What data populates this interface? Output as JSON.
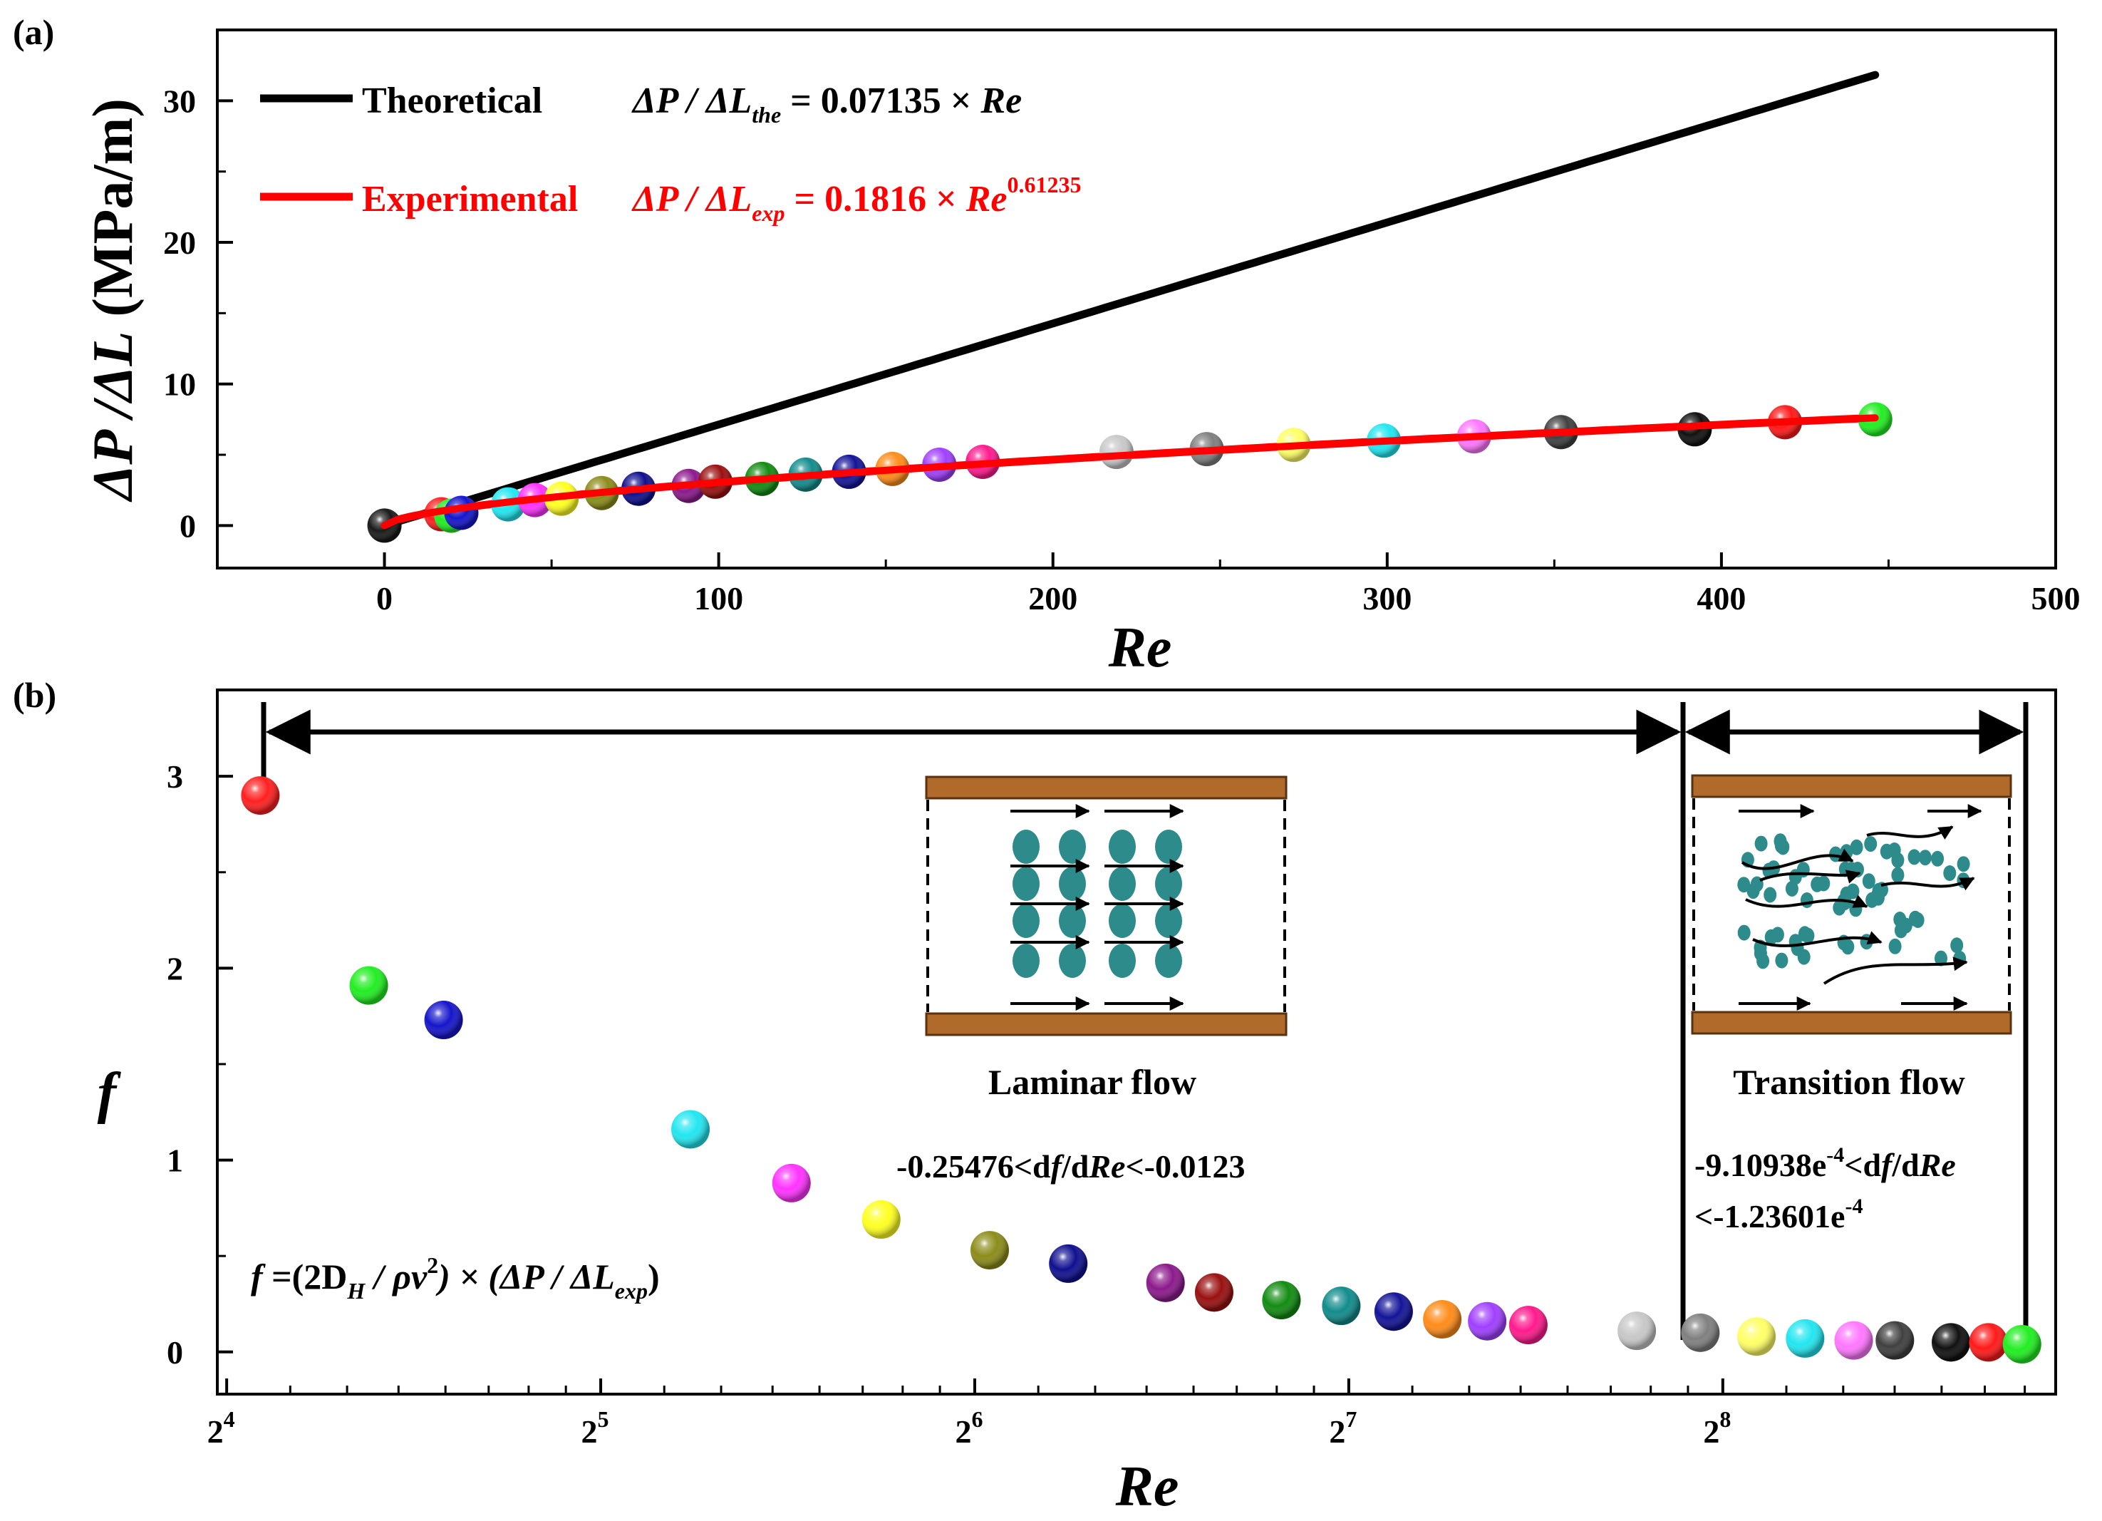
{
  "chart_data": [
    {
      "panel": "(a)",
      "type": "scatter",
      "xlabel": "Re",
      "ylabel": "ΔP / ΔL (MPa/m)",
      "xlim": [
        -50,
        500
      ],
      "ylim": [
        -3,
        35
      ],
      "xticks": [
        "0",
        "100",
        "200",
        "300",
        "400",
        "500"
      ],
      "yticks": [
        "0",
        "10",
        "20",
        "30"
      ],
      "legend": {
        "position": "top-left",
        "entries": [
          {
            "name": "Theoretical",
            "color": "#000000",
            "eq_lhs": "ΔP / ΔL",
            "eq_sub": "the",
            "eq_rhs": " = 0.07135 × ",
            "eq_var": "Re",
            "eq_sup": ""
          },
          {
            "name": "Experimental",
            "color": "#ff0000",
            "eq_lhs": "ΔP / ΔL",
            "eq_sub": "exp",
            "eq_rhs": " = 0.1816 × ",
            "eq_var": "Re",
            "eq_sup": "0.61235"
          }
        ]
      },
      "lines": [
        {
          "name": "Theoretical",
          "color": "#000000",
          "coef": 0.07135,
          "exponent": 1,
          "x_range": [
            0,
            446
          ]
        },
        {
          "name": "Experimental",
          "color": "#ff0000",
          "coef": 0.1816,
          "exponent": 0.61235,
          "x_range": [
            0,
            446
          ]
        }
      ],
      "points": [
        {
          "x": 0,
          "y": 0.0,
          "color": "#1a1a1a"
        },
        {
          "x": 17,
          "y": 0.8,
          "color": "#ff2020"
        },
        {
          "x": 20,
          "y": 0.7,
          "color": "#22ee22"
        },
        {
          "x": 23,
          "y": 0.9,
          "color": "#1515cc"
        },
        {
          "x": 37,
          "y": 1.5,
          "color": "#22e6f0"
        },
        {
          "x": 45,
          "y": 1.8,
          "color": "#ff33ff"
        },
        {
          "x": 53,
          "y": 1.9,
          "color": "#ffff22"
        },
        {
          "x": 65,
          "y": 2.3,
          "color": "#8c8c1a"
        },
        {
          "x": 76,
          "y": 2.6,
          "color": "#101090"
        },
        {
          "x": 91,
          "y": 2.8,
          "color": "#8c1a8c"
        },
        {
          "x": 99,
          "y": 3.1,
          "color": "#9a1010"
        },
        {
          "x": 113,
          "y": 3.3,
          "color": "#138c13"
        },
        {
          "x": 126,
          "y": 3.6,
          "color": "#128c8c"
        },
        {
          "x": 139,
          "y": 3.8,
          "color": "#141499"
        },
        {
          "x": 152,
          "y": 4.0,
          "color": "#ff8c1a"
        },
        {
          "x": 166,
          "y": 4.3,
          "color": "#a040ff"
        },
        {
          "x": 179,
          "y": 4.5,
          "color": "#ff1a8c"
        },
        {
          "x": 219,
          "y": 5.2,
          "color": "#c8c8c8"
        },
        {
          "x": 246,
          "y": 5.4,
          "color": "#808080"
        },
        {
          "x": 272,
          "y": 5.7,
          "color": "#ffff66"
        },
        {
          "x": 299,
          "y": 6.0,
          "color": "#22e6f0"
        },
        {
          "x": 326,
          "y": 6.3,
          "color": "#ff77ff"
        },
        {
          "x": 352,
          "y": 6.6,
          "color": "#404040"
        },
        {
          "x": 392,
          "y": 6.8,
          "color": "#111111"
        },
        {
          "x": 419,
          "y": 7.3,
          "color": "#ff1a1a"
        },
        {
          "x": 446,
          "y": 7.5,
          "color": "#22ee22"
        }
      ]
    },
    {
      "panel": "(b)",
      "type": "scatter",
      "xlabel": "Re",
      "ylabel": "f",
      "xscale": "log2",
      "xlim_exp": [
        3.975,
        8.89
      ],
      "ylim": [
        -0.22,
        3.45
      ],
      "xticks_base": "2",
      "xticks_exp": [
        "4",
        "5",
        "6",
        "7",
        "8"
      ],
      "yticks": [
        "0",
        "1",
        "2",
        "3"
      ],
      "regions": [
        {
          "label": "Laminar flow",
          "slope_text": "-0.25476<df/dRe<-0.0123",
          "slope_a": "-0.25476<d",
          "slope_b": "f",
          "slope_c": "/d",
          "slope_d": "Re",
          "slope_e": "<-0.0123",
          "from_exp": 4.03,
          "to_exp": 7.94
        },
        {
          "label": "Transition flow",
          "slope_a": "-9.10938e",
          "slope_sup": "-4",
          "slope_b": "<d",
          "slope_c": "f",
          "slope_d": "/d",
          "slope_e": "Re",
          "slope_line2": "<-1.23601e",
          "slope_sup2": "-4",
          "from_exp": 7.94,
          "to_exp": 8.85
        }
      ],
      "formula": {
        "a": "f",
        "b": " =(2D",
        "c": "H",
        "d": " / ρv",
        "e": "2",
        "f": ") × (ΔP / ΔL",
        "g": "exp",
        "h": ")"
      },
      "points": [
        {
          "log2_re": 4.09,
          "f": 2.9,
          "color": "#ff2020"
        },
        {
          "log2_re": 4.38,
          "f": 1.91,
          "color": "#22ee22"
        },
        {
          "log2_re": 4.58,
          "f": 1.73,
          "color": "#1515cc"
        },
        {
          "log2_re": 5.24,
          "f": 1.16,
          "color": "#22e6f0"
        },
        {
          "log2_re": 5.51,
          "f": 0.88,
          "color": "#ff33ff"
        },
        {
          "log2_re": 5.75,
          "f": 0.69,
          "color": "#ffff22"
        },
        {
          "log2_re": 6.04,
          "f": 0.53,
          "color": "#8c8c1a"
        },
        {
          "log2_re": 6.25,
          "f": 0.46,
          "color": "#101090"
        },
        {
          "log2_re": 6.51,
          "f": 0.36,
          "color": "#8c1a8c"
        },
        {
          "log2_re": 6.64,
          "f": 0.31,
          "color": "#9a1010"
        },
        {
          "log2_re": 6.82,
          "f": 0.27,
          "color": "#138c13"
        },
        {
          "log2_re": 6.98,
          "f": 0.24,
          "color": "#128c8c"
        },
        {
          "log2_re": 7.12,
          "f": 0.21,
          "color": "#141499"
        },
        {
          "log2_re": 7.25,
          "f": 0.17,
          "color": "#ff8c1a"
        },
        {
          "log2_re": 7.37,
          "f": 0.16,
          "color": "#a040ff"
        },
        {
          "log2_re": 7.48,
          "f": 0.14,
          "color": "#ff1a8c"
        },
        {
          "log2_re": 7.77,
          "f": 0.11,
          "color": "#c8c8c8"
        },
        {
          "log2_re": 7.94,
          "f": 0.1,
          "color": "#808080"
        },
        {
          "log2_re": 8.09,
          "f": 0.08,
          "color": "#ffff66"
        },
        {
          "log2_re": 8.22,
          "f": 0.07,
          "color": "#22e6f0"
        },
        {
          "log2_re": 8.35,
          "f": 0.06,
          "color": "#ff77ff"
        },
        {
          "log2_re": 8.46,
          "f": 0.06,
          "color": "#404040"
        },
        {
          "log2_re": 8.61,
          "f": 0.05,
          "color": "#111111"
        },
        {
          "log2_re": 8.71,
          "f": 0.05,
          "color": "#ff1a1a"
        },
        {
          "log2_re": 8.8,
          "f": 0.04,
          "color": "#22ee22"
        }
      ]
    }
  ]
}
